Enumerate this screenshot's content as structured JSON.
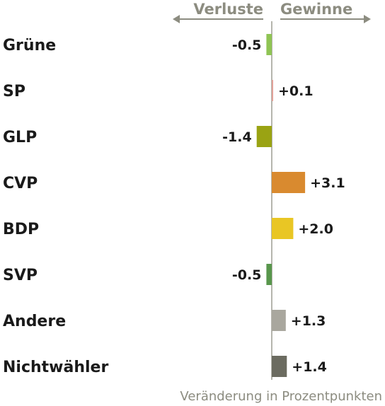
{
  "chart_data": {
    "type": "bar",
    "orientation": "horizontal-diverging",
    "categories": [
      "Grüne",
      "SP",
      "GLP",
      "CVP",
      "BDP",
      "SVP",
      "Andere",
      "Nichtwähler"
    ],
    "values": [
      -0.5,
      0.1,
      -1.4,
      3.1,
      2.0,
      -0.5,
      1.3,
      1.4
    ],
    "value_labels": [
      "-0.5",
      "+0.1",
      "-1.4",
      "+3.1",
      "+2.0",
      "-0.5",
      "+1.3",
      "+1.4"
    ],
    "colors": [
      "#8fc454",
      "#e2a29a",
      "#9aa313",
      "#d98a2f",
      "#e9c624",
      "#58964c",
      "#a9a79e",
      "#6b6b60"
    ],
    "header_left": "Verluste",
    "header_right": "Gewinne",
    "xlabel": "Veränderung in Prozentpunkten",
    "zero_line_color": "#b5b5ad",
    "arrow_color": "#8c8c80"
  }
}
